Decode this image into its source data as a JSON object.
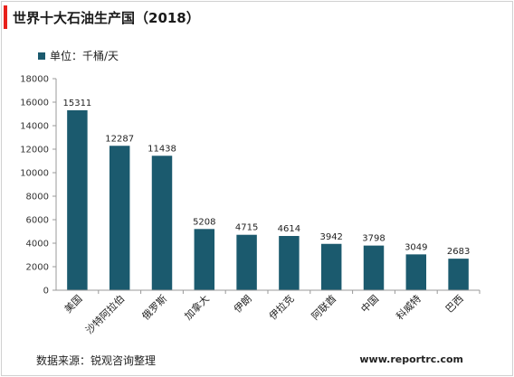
{
  "header": {
    "title": "世界十大石油生产国（2018）"
  },
  "legend": {
    "label": "单位：千桶/天"
  },
  "footer": {
    "source": "数据来源：锐观咨询整理",
    "website": "www.reportrc.com"
  },
  "colors": {
    "bar": "#1b5a6e",
    "accent": "#e8201a",
    "axis": "#999999"
  },
  "chart_data": {
    "type": "bar",
    "title": "世界十大石油生产国（2018）",
    "ylabel": "",
    "xlabel": "",
    "ylim": [
      0,
      18000
    ],
    "yticks": [
      0,
      2000,
      4000,
      6000,
      8000,
      10000,
      12000,
      14000,
      16000,
      18000
    ],
    "grid": false,
    "legend_position": "top-left",
    "categories": [
      "美国",
      "沙特阿拉伯",
      "俄罗斯",
      "加拿大",
      "伊朗",
      "伊拉克",
      "阿联酋",
      "中国",
      "科威特",
      "巴西"
    ],
    "values": [
      15311,
      12287,
      11438,
      5208,
      4715,
      4614,
      3942,
      3798,
      3049,
      2683
    ]
  }
}
